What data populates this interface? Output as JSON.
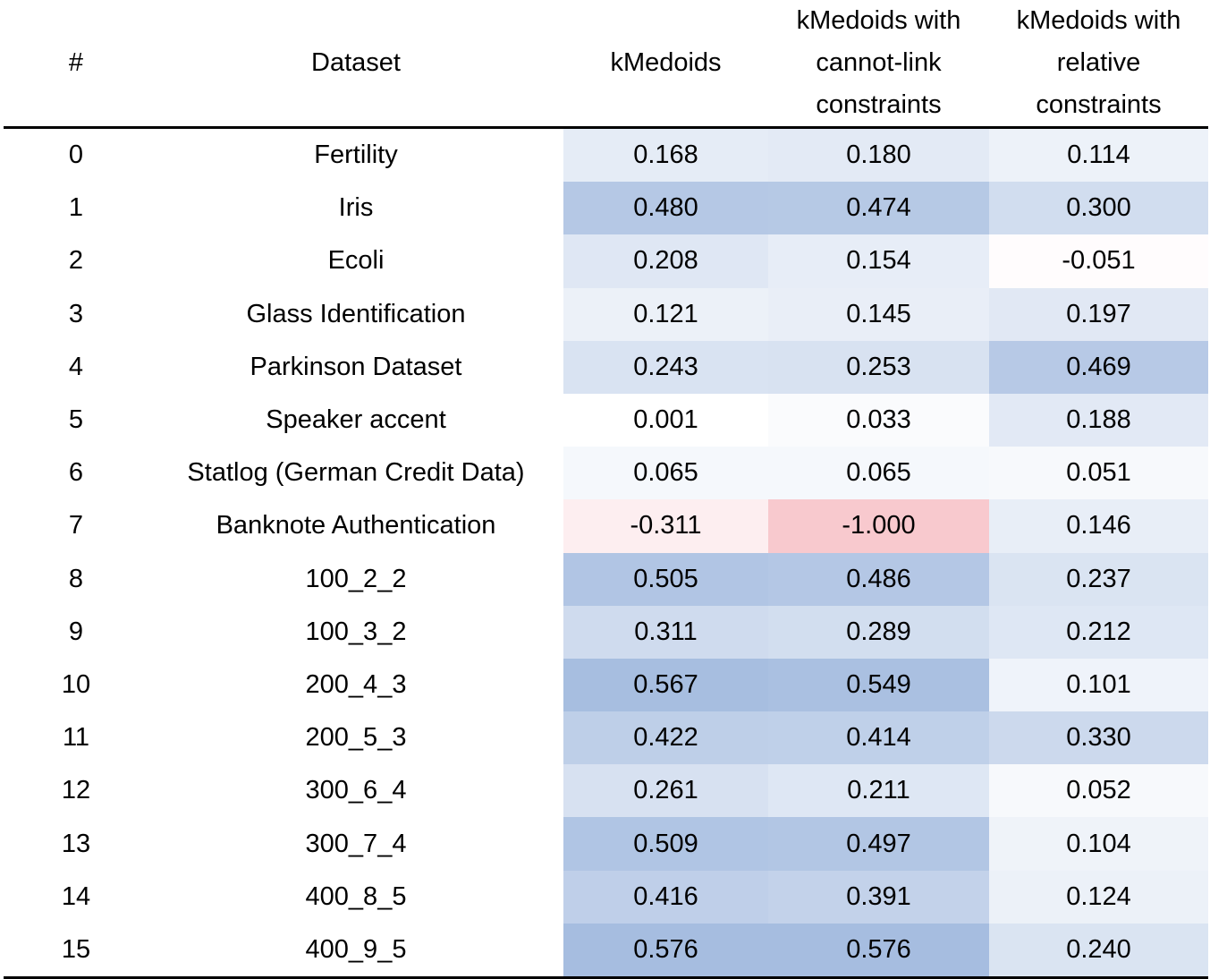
{
  "chart_data": {
    "type": "table",
    "columns": [
      {
        "key": "idx",
        "lines": [
          "#"
        ]
      },
      {
        "key": "dataset",
        "lines": [
          "Dataset"
        ]
      },
      {
        "key": "kmedoids",
        "lines": [
          "kMedoids"
        ]
      },
      {
        "key": "kmedoids_cannot_link",
        "lines": [
          "kMedoids with",
          "cannot-link",
          "constraints"
        ]
      },
      {
        "key": "kmedoids_relative",
        "lines": [
          "kMedoids with",
          "relative",
          "constraints"
        ]
      }
    ],
    "rows": [
      {
        "idx": "0",
        "dataset": "Fertility",
        "values": [
          "0.168",
          "0.180",
          "0.114"
        ]
      },
      {
        "idx": "1",
        "dataset": "Iris",
        "values": [
          "0.480",
          "0.474",
          "0.300"
        ]
      },
      {
        "idx": "2",
        "dataset": "Ecoli",
        "values": [
          "0.208",
          "0.154",
          "-0.051"
        ]
      },
      {
        "idx": "3",
        "dataset": "Glass Identification",
        "values": [
          "0.121",
          "0.145",
          "0.197"
        ]
      },
      {
        "idx": "4",
        "dataset": "Parkinson Dataset",
        "values": [
          "0.243",
          "0.253",
          "0.469"
        ]
      },
      {
        "idx": "5",
        "dataset": "Speaker accent",
        "values": [
          "0.001",
          "0.033",
          "0.188"
        ]
      },
      {
        "idx": "6",
        "dataset": "Statlog (German Credit Data)",
        "values": [
          "0.065",
          "0.065",
          "0.051"
        ]
      },
      {
        "idx": "7",
        "dataset": "Banknote Authentication",
        "values": [
          "-0.311",
          "-1.000",
          "0.146"
        ]
      },
      {
        "idx": "8",
        "dataset": "100_2_2",
        "values": [
          "0.505",
          "0.486",
          "0.237"
        ]
      },
      {
        "idx": "9",
        "dataset": "100_3_2",
        "values": [
          "0.311",
          "0.289",
          "0.212"
        ]
      },
      {
        "idx": "10",
        "dataset": "200_4_3",
        "values": [
          "0.567",
          "0.549",
          "0.101"
        ]
      },
      {
        "idx": "11",
        "dataset": "200_5_3",
        "values": [
          "0.422",
          "0.414",
          "0.330"
        ]
      },
      {
        "idx": "12",
        "dataset": "300_6_4",
        "values": [
          "0.261",
          "0.211",
          "0.052"
        ]
      },
      {
        "idx": "13",
        "dataset": "300_7_4",
        "values": [
          "0.509",
          "0.497",
          "0.104"
        ]
      },
      {
        "idx": "14",
        "dataset": "400_8_5",
        "values": [
          "0.416",
          "0.391",
          "0.124"
        ]
      },
      {
        "idx": "15",
        "dataset": "400_9_5",
        "values": [
          "0.576",
          "0.576",
          "0.240"
        ]
      }
    ],
    "heatmap": {
      "applies_to": [
        "kmedoids",
        "kmedoids_cannot_link",
        "kmedoids_relative"
      ],
      "negative_color": "#f8c9ce",
      "neutral_color": "#ffffff",
      "positive_color": "#a6bde0",
      "min": -1.0,
      "max": 0.576
    }
  }
}
